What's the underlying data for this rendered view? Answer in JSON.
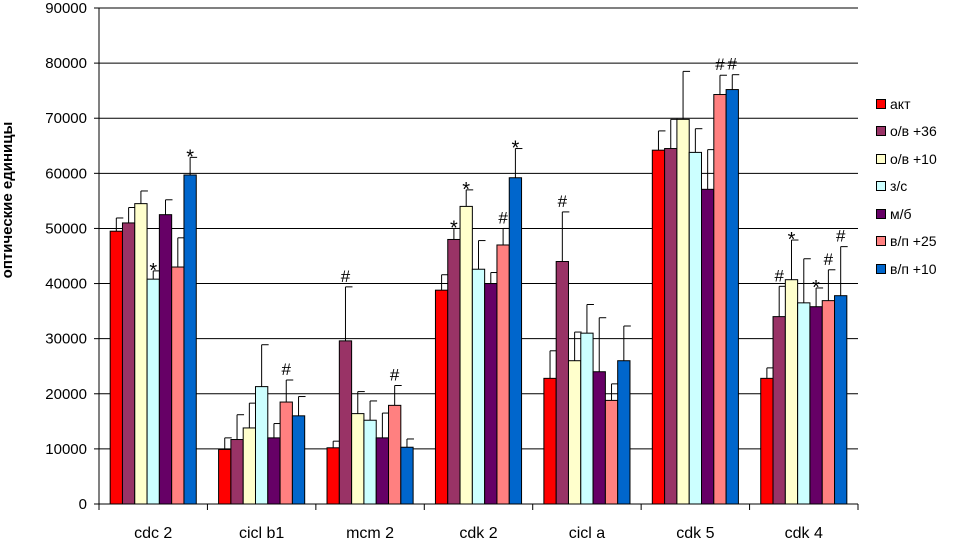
{
  "chart_data": {
    "type": "bar",
    "title": "",
    "xlabel": "",
    "ylabel": "оптические единицы",
    "ylim": [
      0,
      90000
    ],
    "yticks": [
      "0",
      "10000",
      "20000",
      "30000",
      "40000",
      "50000",
      "60000",
      "70000",
      "80000",
      "90000"
    ],
    "grid": true,
    "legend_position": "right",
    "categories": [
      "cdc 2",
      "cicl b1",
      "mcm 2",
      "cdk 2",
      "cicl a",
      "cdk 5",
      "cdk 4"
    ],
    "series": [
      {
        "name": "акт",
        "color": "#ff0000",
        "values": [
          49500,
          9900,
          10200,
          38800,
          22800,
          64200,
          22800
        ],
        "errors": [
          2400,
          2100,
          1200,
          2800,
          5000,
          3500,
          1900
        ],
        "marks": [
          "",
          "",
          "",
          "",
          "",
          "",
          ""
        ]
      },
      {
        "name": "о/в +36",
        "color": "#993366",
        "values": [
          51000,
          11700,
          29600,
          48000,
          44000,
          64500,
          34000
        ],
        "errors": [
          2800,
          4500,
          9800,
          2000,
          9000,
          5300,
          5500
        ],
        "marks": [
          "",
          "",
          "#",
          "*",
          "#",
          "",
          "#"
        ]
      },
      {
        "name": "о/в +10",
        "color": "#ffffcc",
        "values": [
          54500,
          13800,
          16400,
          54000,
          26000,
          69800,
          40700
        ],
        "errors": [
          2300,
          4500,
          4000,
          3000,
          5200,
          8700,
          7200
        ],
        "marks": [
          "",
          "",
          "",
          "*",
          "",
          "",
          "*"
        ]
      },
      {
        "name": "з/с",
        "color": "#ccffff",
        "values": [
          40800,
          21300,
          15200,
          42600,
          31000,
          63800,
          36500
        ],
        "errors": [
          1500,
          7600,
          3500,
          5200,
          5200,
          4300,
          8000
        ],
        "marks": [
          "*",
          "",
          "",
          "",
          "",
          "",
          ""
        ]
      },
      {
        "name": "м/б",
        "color": "#660066",
        "values": [
          52500,
          12000,
          12000,
          40000,
          24000,
          57100,
          35800
        ],
        "errors": [
          2700,
          2600,
          4500,
          2000,
          9800,
          7200,
          3400
        ],
        "marks": [
          "",
          "",
          "",
          "",
          "",
          "",
          "*"
        ]
      },
      {
        "name": "в/п +25",
        "color": "#ff8080",
        "values": [
          43000,
          18500,
          17900,
          47000,
          18800,
          74300,
          36900
        ],
        "errors": [
          5300,
          4000,
          3600,
          3000,
          3000,
          3500,
          5600
        ],
        "marks": [
          "",
          "#",
          "#",
          "#",
          "",
          "#",
          "#"
        ]
      },
      {
        "name": "в/п +10",
        "color": "#0066cc",
        "values": [
          59700,
          16000,
          10300,
          59200,
          26000,
          75200,
          37800
        ],
        "errors": [
          3200,
          3500,
          1500,
          5300,
          6300,
          2700,
          8900
        ],
        "marks": [
          "*",
          "",
          "",
          "*",
          "",
          "#",
          "#"
        ]
      }
    ]
  }
}
